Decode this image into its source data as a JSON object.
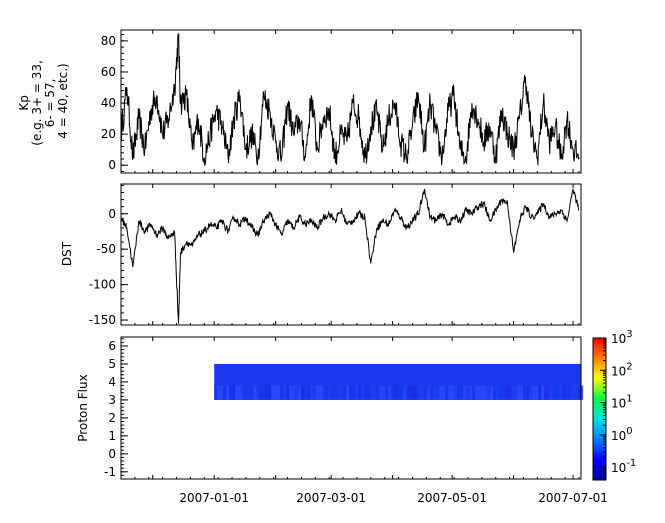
{
  "chart_data": [
    {
      "type": "line",
      "ylabel_lines": [
        "Kp",
        "(e.g. 3+ = 33,",
        "6- = 57,",
        "4 = 40, etc.)"
      ],
      "ylim": [
        -5,
        87
      ],
      "yticks": [
        0,
        20,
        40,
        60,
        80
      ],
      "ytick_labels": [
        "0",
        "20",
        "40",
        "60",
        "80"
      ],
      "color": "#000000",
      "series": [
        {
          "x": [
            "2006-11-15",
            "2006-11-18",
            "2006-11-21",
            "2006-11-24",
            "2006-11-27",
            "2006-11-30",
            "2006-12-03",
            "2006-12-06",
            "2006-12-09",
            "2006-12-12",
            "2006-12-14",
            "2006-12-15",
            "2006-12-18",
            "2006-12-21",
            "2006-12-24",
            "2006-12-27",
            "2006-12-30",
            "2007-01-02",
            "2007-01-05",
            "2007-01-08",
            "2007-01-11",
            "2007-01-14",
            "2007-01-17",
            "2007-01-20",
            "2007-01-23",
            "2007-01-26",
            "2007-01-29",
            "2007-02-01",
            "2007-02-04",
            "2007-02-07",
            "2007-02-10",
            "2007-02-13",
            "2007-02-16",
            "2007-02-19",
            "2007-02-22",
            "2007-02-25",
            "2007-02-28",
            "2007-03-03",
            "2007-03-06",
            "2007-03-09",
            "2007-03-12",
            "2007-03-15",
            "2007-03-18",
            "2007-03-21",
            "2007-03-24",
            "2007-03-27",
            "2007-03-30",
            "2007-04-02",
            "2007-04-05",
            "2007-04-08",
            "2007-04-11",
            "2007-04-14",
            "2007-04-17",
            "2007-04-20",
            "2007-04-23",
            "2007-04-26",
            "2007-04-29",
            "2007-05-02",
            "2007-05-05",
            "2007-05-08",
            "2007-05-11",
            "2007-05-14",
            "2007-05-17",
            "2007-05-20",
            "2007-05-23",
            "2007-05-26",
            "2007-05-29",
            "2007-06-01",
            "2007-06-04",
            "2007-06-07",
            "2007-06-10",
            "2007-06-13",
            "2007-06-16",
            "2007-06-19",
            "2007-06-22",
            "2007-06-25",
            "2007-06-28",
            "2007-07-01",
            "2007-07-04"
          ],
          "values": [
            20,
            50,
            5,
            30,
            10,
            35,
            45,
            20,
            30,
            50,
            83,
            40,
            45,
            10,
            30,
            5,
            20,
            35,
            25,
            5,
            30,
            45,
            10,
            20,
            5,
            45,
            35,
            15,
            5,
            40,
            20,
            30,
            5,
            45,
            10,
            30,
            35,
            5,
            20,
            15,
            40,
            30,
            5,
            25,
            35,
            10,
            30,
            40,
            15,
            5,
            25,
            45,
            10,
            40,
            20,
            5,
            35,
            45,
            10,
            5,
            40,
            30,
            15,
            25,
            5,
            35,
            20,
            10,
            30,
            57,
            20,
            5,
            40,
            15,
            25,
            5,
            30,
            10,
            5
          ]
        }
      ]
    },
    {
      "type": "line",
      "ylabel": "DST",
      "ylim": [
        -157,
        42
      ],
      "yticks": [
        -150,
        -100,
        -50,
        0
      ],
      "ytick_labels": [
        "-150",
        "-100",
        "-50",
        "0"
      ],
      "color": "#000000",
      "series": [
        {
          "x": [
            "2006-11-15",
            "2006-11-18",
            "2006-11-21",
            "2006-11-24",
            "2006-11-27",
            "2006-11-30",
            "2006-12-03",
            "2006-12-06",
            "2006-12-09",
            "2006-12-12",
            "2006-12-14",
            "2006-12-15",
            "2006-12-18",
            "2006-12-21",
            "2006-12-24",
            "2006-12-27",
            "2006-12-30",
            "2007-01-02",
            "2007-01-05",
            "2007-01-08",
            "2007-01-11",
            "2007-01-14",
            "2007-01-17",
            "2007-01-20",
            "2007-01-23",
            "2007-01-26",
            "2007-01-29",
            "2007-02-01",
            "2007-02-04",
            "2007-02-07",
            "2007-02-10",
            "2007-02-13",
            "2007-02-16",
            "2007-02-19",
            "2007-02-22",
            "2007-02-25",
            "2007-02-28",
            "2007-03-03",
            "2007-03-06",
            "2007-03-09",
            "2007-03-12",
            "2007-03-15",
            "2007-03-18",
            "2007-03-21",
            "2007-03-24",
            "2007-03-27",
            "2007-03-30",
            "2007-04-02",
            "2007-04-05",
            "2007-04-08",
            "2007-04-11",
            "2007-04-14",
            "2007-04-17",
            "2007-04-20",
            "2007-04-23",
            "2007-04-26",
            "2007-04-29",
            "2007-05-02",
            "2007-05-05",
            "2007-05-08",
            "2007-05-11",
            "2007-05-14",
            "2007-05-17",
            "2007-05-20",
            "2007-05-23",
            "2007-05-26",
            "2007-05-29",
            "2007-06-01",
            "2007-06-04",
            "2007-06-07",
            "2007-06-10",
            "2007-06-13",
            "2007-06-16",
            "2007-06-19",
            "2007-06-22",
            "2007-06-25",
            "2007-06-28",
            "2007-07-01",
            "2007-07-04"
          ],
          "values": [
            -5,
            -20,
            -75,
            -10,
            -25,
            -15,
            -30,
            -20,
            -35,
            -25,
            -155,
            -55,
            -40,
            -45,
            -30,
            -25,
            -15,
            -20,
            -10,
            -25,
            -5,
            -15,
            -5,
            -20,
            -30,
            -10,
            0,
            -15,
            -30,
            -10,
            -20,
            -5,
            -15,
            -10,
            -20,
            -5,
            0,
            -10,
            5,
            -15,
            -10,
            0,
            -5,
            -70,
            -20,
            -10,
            -15,
            5,
            -5,
            -20,
            -10,
            0,
            35,
            -5,
            -10,
            0,
            -15,
            -5,
            -10,
            5,
            0,
            10,
            15,
            -10,
            5,
            20,
            15,
            -55,
            -10,
            10,
            -5,
            0,
            15,
            -5,
            0,
            5,
            -10,
            35,
            5
          ]
        }
      ]
    },
    {
      "type": "heatmap",
      "ylabel": "Proton Flux",
      "ylim": [
        -1.4,
        6.5
      ],
      "yticks": [
        -1,
        0,
        1,
        2,
        3,
        4,
        5,
        6
      ],
      "ytick_labels": [
        "-1",
        "0",
        "1",
        "2",
        "3",
        "4",
        "5",
        "6"
      ],
      "data_x_range": [
        "2007-01-01",
        "2007-07-05"
      ],
      "data_y_range": [
        3,
        5
      ],
      "fill_color": "#1c38f0",
      "colorbar": {
        "scale": "log",
        "range": [
          0.04,
          1000
        ],
        "tick_values": [
          0.1,
          1,
          10,
          100,
          1000
        ],
        "tick_labels": [
          {
            "base": "10",
            "exp": "-1"
          },
          {
            "base": "10",
            "exp": "0"
          },
          {
            "base": "10",
            "exp": "1"
          },
          {
            "base": "10",
            "exp": "2"
          },
          {
            "base": "10",
            "exp": "3"
          }
        ],
        "colors": [
          "#0000a0",
          "#0000ff",
          "#0080ff",
          "#00e0e0",
          "#00ff40",
          "#ffff00",
          "#ff8000",
          "#ff0000"
        ]
      }
    }
  ],
  "x_axis": {
    "range": [
      "2006-11-15",
      "2007-07-05"
    ],
    "tick_labels": [
      "2007-01-01",
      "2007-03-01",
      "2007-05-01",
      "2007-07-01"
    ]
  }
}
